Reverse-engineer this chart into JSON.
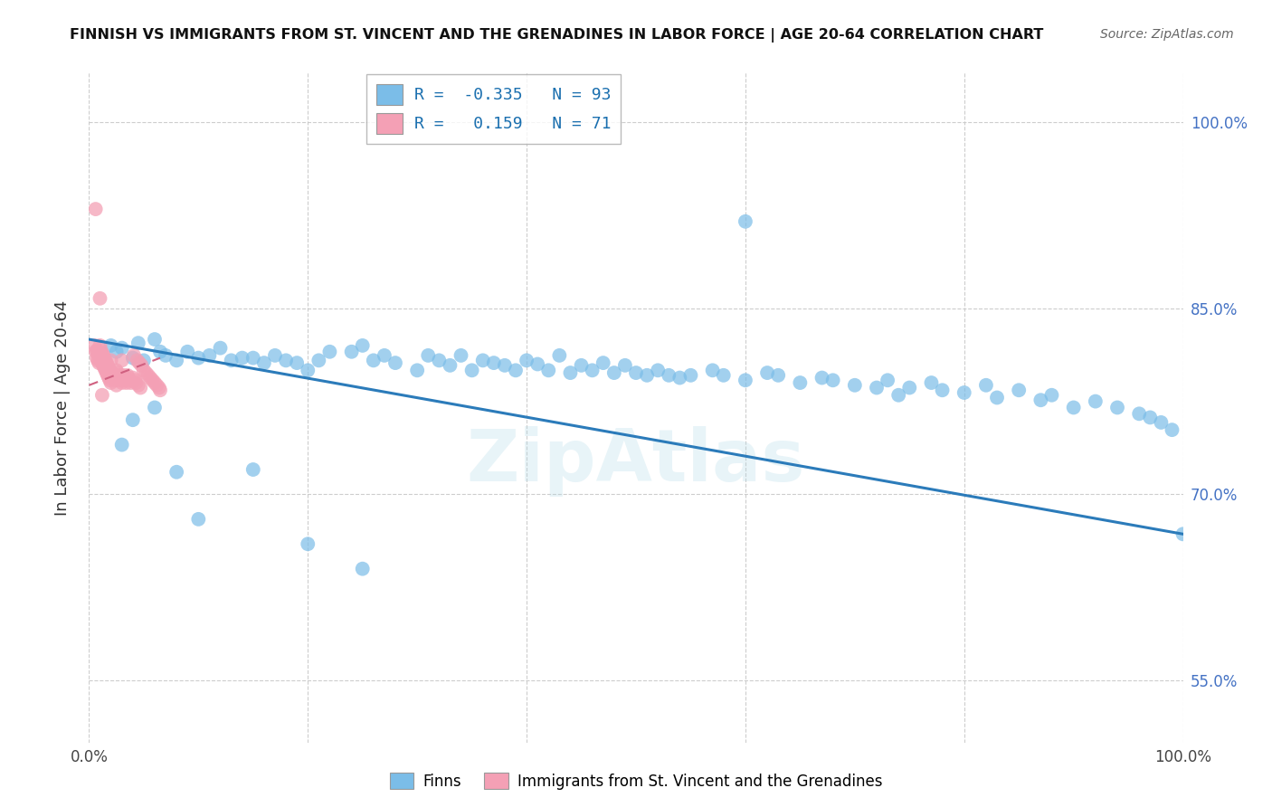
{
  "title": "FINNISH VS IMMIGRANTS FROM ST. VINCENT AND THE GRENADINES IN LABOR FORCE | AGE 20-64 CORRELATION CHART",
  "source": "Source: ZipAtlas.com",
  "ylabel": "In Labor Force | Age 20-64",
  "xlim": [
    0.0,
    1.0
  ],
  "ylim": [
    0.5,
    1.04
  ],
  "yticks": [
    0.55,
    0.7,
    0.85,
    1.0
  ],
  "ytick_labels": [
    "55.0%",
    "70.0%",
    "85.0%",
    "100.0%"
  ],
  "xticks": [
    0.0,
    0.2,
    0.4,
    0.6,
    0.8,
    1.0
  ],
  "xtick_labels": [
    "0.0%",
    "",
    "",
    "",
    "",
    "100.0%"
  ],
  "legend_blue_label": "Finns",
  "legend_pink_label": "Immigrants from St. Vincent and the Grenadines",
  "R_blue": -0.335,
  "N_blue": 93,
  "R_pink": 0.159,
  "N_pink": 71,
  "blue_color": "#7bbde8",
  "pink_color": "#f4a0b5",
  "blue_line_color": "#2b7bba",
  "pink_line_color": "#d06080",
  "blue_trend_x0": 0.0,
  "blue_trend_y0": 0.825,
  "blue_trend_x1": 1.0,
  "blue_trend_y1": 0.668,
  "pink_trend_x0": 0.0,
  "pink_trend_y0": 0.788,
  "pink_trend_x1": 0.065,
  "pink_trend_y1": 0.81,
  "blue_x": [
    0.02,
    0.025,
    0.03,
    0.04,
    0.045,
    0.05,
    0.06,
    0.065,
    0.07,
    0.08,
    0.09,
    0.1,
    0.11,
    0.12,
    0.13,
    0.14,
    0.15,
    0.16,
    0.17,
    0.18,
    0.19,
    0.2,
    0.21,
    0.22,
    0.24,
    0.25,
    0.26,
    0.27,
    0.28,
    0.3,
    0.31,
    0.32,
    0.33,
    0.34,
    0.35,
    0.36,
    0.37,
    0.38,
    0.39,
    0.4,
    0.41,
    0.42,
    0.43,
    0.44,
    0.45,
    0.46,
    0.47,
    0.48,
    0.49,
    0.5,
    0.51,
    0.52,
    0.53,
    0.54,
    0.55,
    0.57,
    0.58,
    0.6,
    0.62,
    0.63,
    0.65,
    0.67,
    0.68,
    0.7,
    0.72,
    0.73,
    0.74,
    0.75,
    0.77,
    0.78,
    0.8,
    0.82,
    0.83,
    0.85,
    0.87,
    0.88,
    0.9,
    0.92,
    0.94,
    0.96,
    0.97,
    0.98,
    0.99,
    1.0,
    0.03,
    0.04,
    0.06,
    0.08,
    0.1,
    0.15,
    0.2,
    0.25,
    0.6
  ],
  "blue_y": [
    0.82,
    0.815,
    0.818,
    0.81,
    0.822,
    0.808,
    0.825,
    0.815,
    0.812,
    0.808,
    0.815,
    0.81,
    0.812,
    0.818,
    0.808,
    0.81,
    0.81,
    0.806,
    0.812,
    0.808,
    0.806,
    0.8,
    0.808,
    0.815,
    0.815,
    0.82,
    0.808,
    0.812,
    0.806,
    0.8,
    0.812,
    0.808,
    0.804,
    0.812,
    0.8,
    0.808,
    0.806,
    0.804,
    0.8,
    0.808,
    0.805,
    0.8,
    0.812,
    0.798,
    0.804,
    0.8,
    0.806,
    0.798,
    0.804,
    0.798,
    0.796,
    0.8,
    0.796,
    0.794,
    0.796,
    0.8,
    0.796,
    0.792,
    0.798,
    0.796,
    0.79,
    0.794,
    0.792,
    0.788,
    0.786,
    0.792,
    0.78,
    0.786,
    0.79,
    0.784,
    0.782,
    0.788,
    0.778,
    0.784,
    0.776,
    0.78,
    0.77,
    0.775,
    0.77,
    0.765,
    0.762,
    0.758,
    0.752,
    0.668,
    0.74,
    0.76,
    0.77,
    0.718,
    0.68,
    0.72,
    0.66,
    0.64,
    0.92
  ],
  "pink_x": [
    0.005,
    0.006,
    0.007,
    0.007,
    0.008,
    0.008,
    0.009,
    0.009,
    0.01,
    0.01,
    0.011,
    0.011,
    0.012,
    0.012,
    0.013,
    0.013,
    0.014,
    0.014,
    0.015,
    0.015,
    0.016,
    0.016,
    0.017,
    0.017,
    0.018,
    0.018,
    0.019,
    0.019,
    0.02,
    0.02,
    0.021,
    0.022,
    0.023,
    0.024,
    0.025,
    0.025,
    0.026,
    0.027,
    0.028,
    0.029,
    0.03,
    0.03,
    0.031,
    0.032,
    0.033,
    0.034,
    0.035,
    0.036,
    0.037,
    0.038,
    0.04,
    0.041,
    0.042,
    0.043,
    0.044,
    0.045,
    0.046,
    0.047,
    0.048,
    0.05,
    0.052,
    0.054,
    0.056,
    0.058,
    0.06,
    0.062,
    0.064,
    0.065,
    0.01,
    0.012,
    0.006
  ],
  "pink_y": [
    0.82,
    0.815,
    0.816,
    0.81,
    0.814,
    0.808,
    0.812,
    0.806,
    0.82,
    0.81,
    0.816,
    0.808,
    0.814,
    0.806,
    0.812,
    0.804,
    0.81,
    0.802,
    0.808,
    0.8,
    0.806,
    0.798,
    0.804,
    0.796,
    0.802,
    0.794,
    0.8,
    0.792,
    0.808,
    0.79,
    0.798,
    0.796,
    0.794,
    0.792,
    0.8,
    0.788,
    0.798,
    0.796,
    0.794,
    0.792,
    0.808,
    0.79,
    0.796,
    0.794,
    0.792,
    0.79,
    0.796,
    0.794,
    0.792,
    0.79,
    0.794,
    0.812,
    0.792,
    0.79,
    0.808,
    0.788,
    0.806,
    0.786,
    0.804,
    0.8,
    0.798,
    0.796,
    0.794,
    0.792,
    0.79,
    0.788,
    0.786,
    0.784,
    0.858,
    0.78,
    0.93
  ]
}
